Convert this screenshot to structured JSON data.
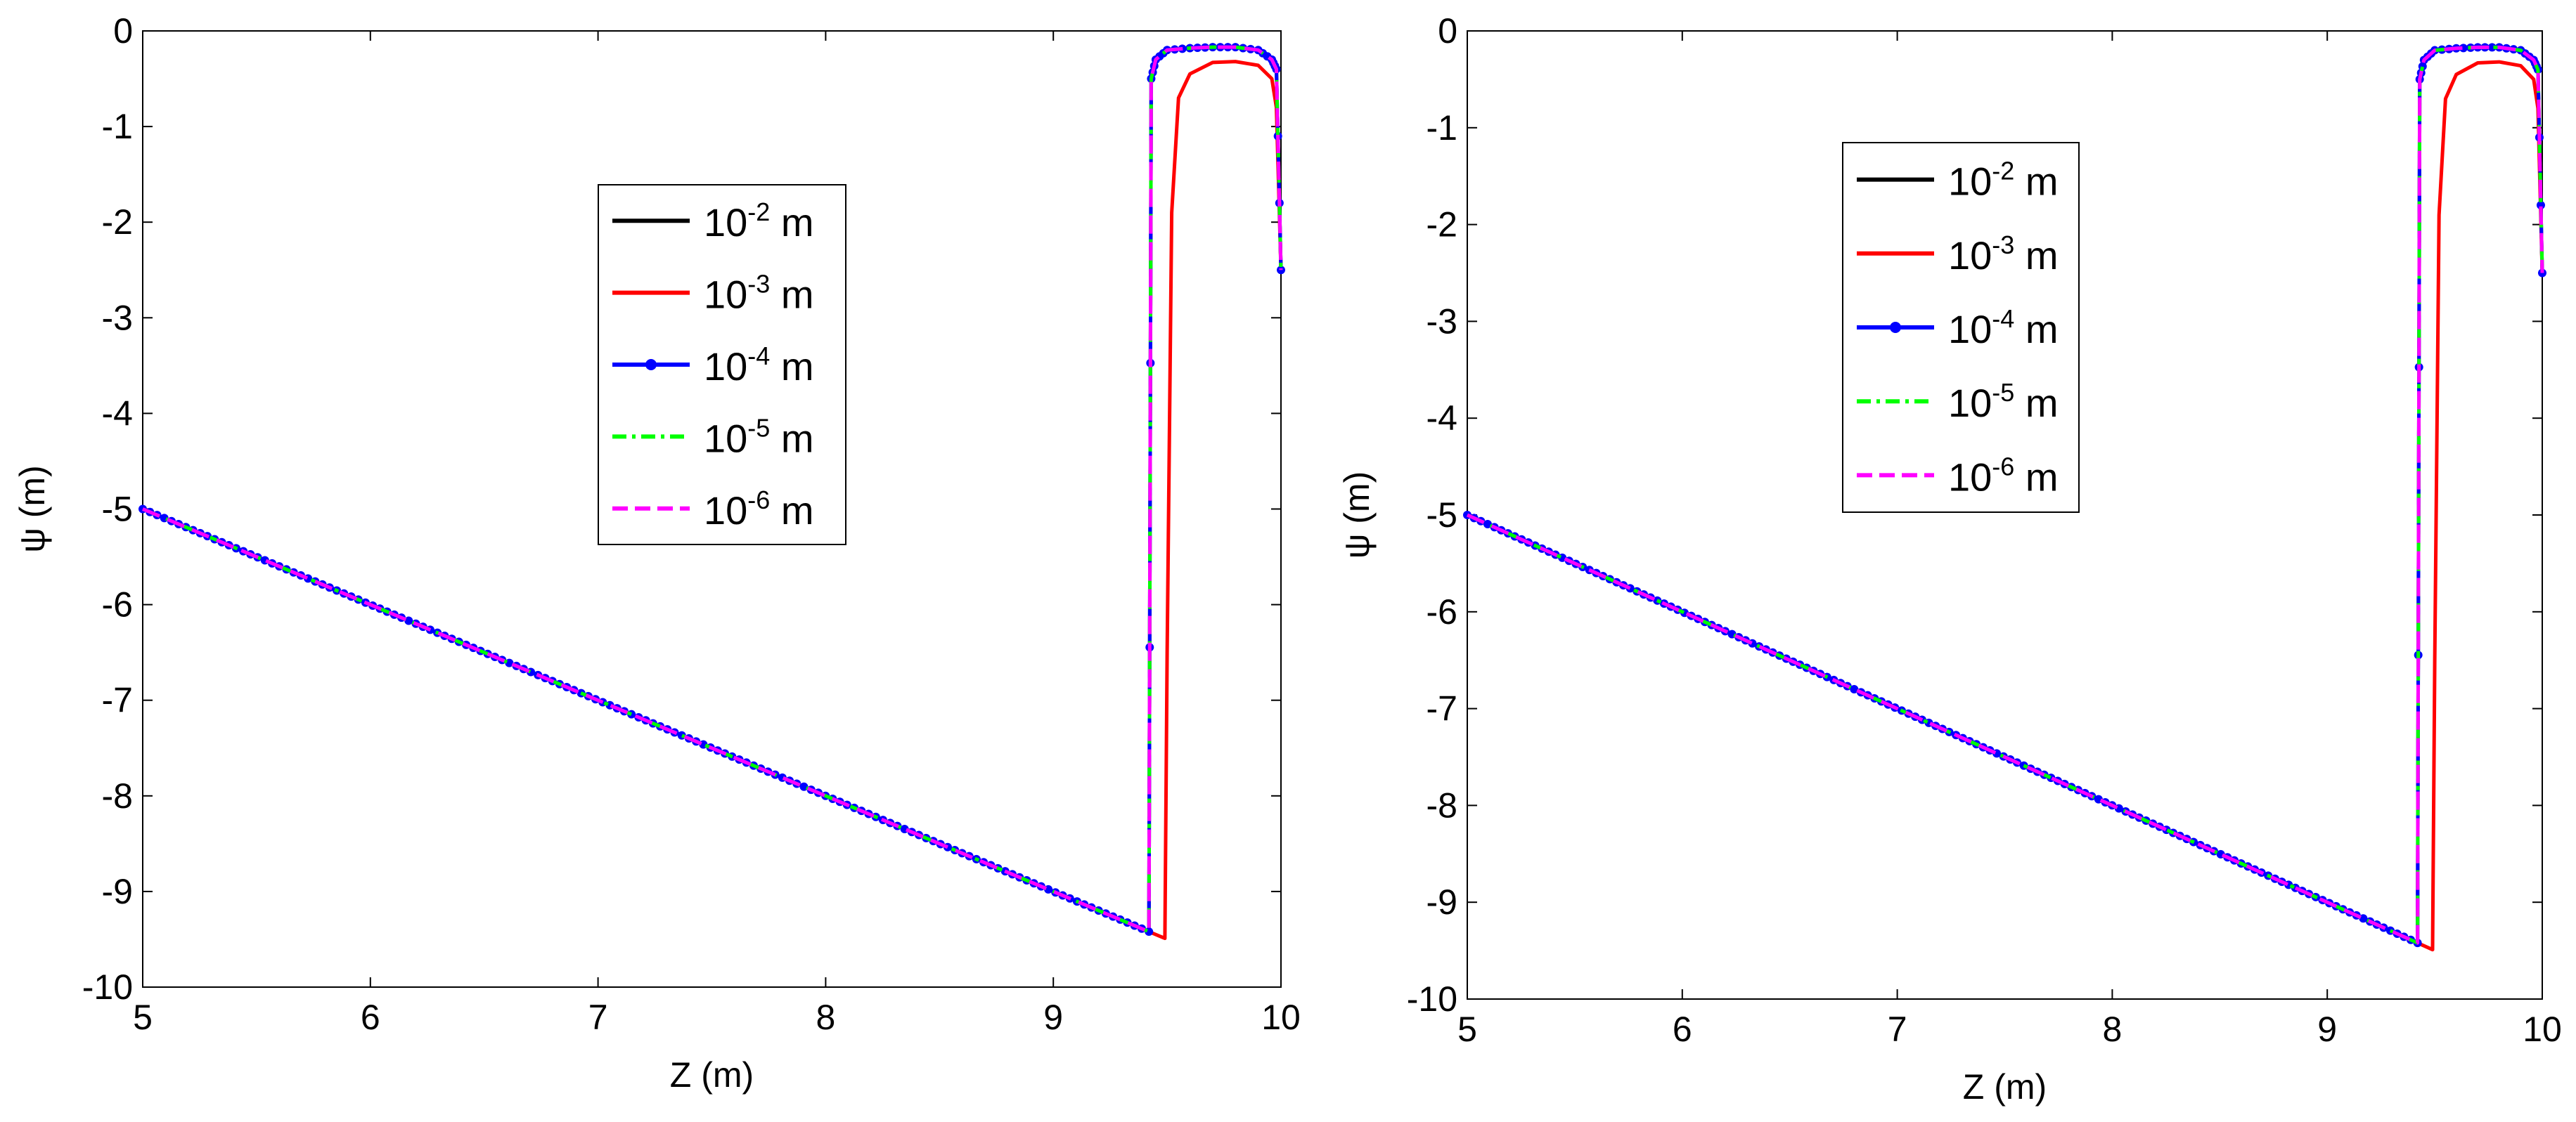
{
  "chart_data": [
    {
      "type": "line",
      "xlabel": "Z (m)",
      "ylabel": "ψ (m)",
      "xlim": [
        5,
        10
      ],
      "ylim": [
        -10,
        0
      ],
      "xticks": [
        "5",
        "6",
        "7",
        "8",
        "9",
        "10"
      ],
      "yticks": [
        "0",
        "-1",
        "-2",
        "-3",
        "-4",
        "-5",
        "-6",
        "-7",
        "-8",
        "-9",
        "-10"
      ],
      "grid": false,
      "legend_placement": "upper-center",
      "series": [
        {
          "name_base": "10",
          "name_exp": "-2",
          "name_unit": " m",
          "color": "#000000",
          "style": "solid",
          "marker": "none",
          "x": [
            5.0,
            9.42,
            9.43,
            9.45,
            9.5,
            9.6,
            9.7,
            9.8,
            9.9,
            9.96,
            9.98,
            10.0
          ],
          "y": [
            -5.0,
            -9.42,
            -0.5,
            -0.3,
            -0.2,
            -0.18,
            -0.17,
            -0.17,
            -0.2,
            -0.3,
            -0.4,
            -2.5
          ]
        },
        {
          "name_base": "10",
          "name_exp": "-3",
          "name_unit": " m",
          "color": "#ff0000",
          "style": "solid",
          "marker": "none",
          "x": [
            5.0,
            9.49,
            9.5,
            9.52,
            9.55,
            9.6,
            9.7,
            9.8,
            9.9,
            9.96,
            9.98,
            10.0
          ],
          "y": [
            -5.0,
            -9.49,
            -6.5,
            -1.9,
            -0.7,
            -0.45,
            -0.33,
            -0.32,
            -0.36,
            -0.5,
            -0.8,
            -2.5
          ]
        },
        {
          "name_base": "10",
          "name_exp": "-4",
          "name_unit": " m",
          "color": "#0000ff",
          "style": "solid",
          "marker": "dot",
          "x": [
            5.0,
            9.42,
            9.43,
            9.45,
            9.5,
            9.6,
            9.7,
            9.8,
            9.9,
            9.96,
            9.98,
            10.0
          ],
          "y": [
            -5.0,
            -9.42,
            -0.5,
            -0.3,
            -0.2,
            -0.18,
            -0.17,
            -0.17,
            -0.2,
            -0.3,
            -0.4,
            -2.5
          ]
        },
        {
          "name_base": "10",
          "name_exp": "-5",
          "name_unit": " m",
          "color": "#00ff00",
          "style": "dashdot",
          "marker": "none",
          "x": [
            5.0,
            9.42,
            9.43,
            9.45,
            9.5,
            9.6,
            9.7,
            9.8,
            9.9,
            9.96,
            9.98,
            10.0
          ],
          "y": [
            -5.0,
            -9.42,
            -0.5,
            -0.3,
            -0.2,
            -0.18,
            -0.17,
            -0.17,
            -0.2,
            -0.3,
            -0.4,
            -2.5
          ]
        },
        {
          "name_base": "10",
          "name_exp": "-6",
          "name_unit": " m",
          "color": "#ff00ff",
          "style": "dashed",
          "marker": "none",
          "x": [
            5.0,
            9.42,
            9.43,
            9.45,
            9.5,
            9.6,
            9.7,
            9.8,
            9.9,
            9.96,
            9.98,
            10.0
          ],
          "y": [
            -5.0,
            -9.42,
            -0.5,
            -0.3,
            -0.2,
            -0.18,
            -0.17,
            -0.17,
            -0.2,
            -0.3,
            -0.4,
            -2.5
          ]
        }
      ]
    },
    {
      "type": "line",
      "xlabel": "Z (m)",
      "ylabel": "ψ (m)",
      "xlim": [
        5,
        10
      ],
      "ylim": [
        -10,
        0
      ],
      "xticks": [
        "5",
        "6",
        "7",
        "8",
        "9",
        "10"
      ],
      "yticks": [
        "0",
        "-1",
        "-2",
        "-3",
        "-4",
        "-5",
        "-6",
        "-7",
        "-8",
        "-9",
        "-10"
      ],
      "grid": false,
      "legend_placement": "upper-center",
      "series": [
        {
          "name_base": "10",
          "name_exp": "-2",
          "name_unit": " m",
          "color": "#000000",
          "style": "solid",
          "marker": "none",
          "x": [
            5.0,
            9.42,
            9.43,
            9.45,
            9.5,
            9.6,
            9.7,
            9.8,
            9.9,
            9.96,
            9.98,
            10.0
          ],
          "y": [
            -5.0,
            -9.42,
            -0.5,
            -0.3,
            -0.2,
            -0.18,
            -0.17,
            -0.17,
            -0.2,
            -0.3,
            -0.4,
            -2.5
          ]
        },
        {
          "name_base": "10",
          "name_exp": "-3",
          "name_unit": " m",
          "color": "#ff0000",
          "style": "solid",
          "marker": "none",
          "x": [
            5.0,
            9.49,
            9.5,
            9.52,
            9.55,
            9.6,
            9.7,
            9.8,
            9.9,
            9.96,
            9.98,
            10.0
          ],
          "y": [
            -5.0,
            -9.49,
            -6.5,
            -1.9,
            -0.7,
            -0.45,
            -0.33,
            -0.32,
            -0.36,
            -0.5,
            -0.8,
            -2.5
          ]
        },
        {
          "name_base": "10",
          "name_exp": "-4",
          "name_unit": " m",
          "color": "#0000ff",
          "style": "solid",
          "marker": "dot",
          "x": [
            5.0,
            9.42,
            9.43,
            9.45,
            9.5,
            9.6,
            9.7,
            9.8,
            9.9,
            9.96,
            9.98,
            10.0
          ],
          "y": [
            -5.0,
            -9.42,
            -0.5,
            -0.3,
            -0.2,
            -0.18,
            -0.17,
            -0.17,
            -0.2,
            -0.3,
            -0.4,
            -2.5
          ]
        },
        {
          "name_base": "10",
          "name_exp": "-5",
          "name_unit": " m",
          "color": "#00ff00",
          "style": "dashdot",
          "marker": "none",
          "x": [
            5.0,
            9.42,
            9.43,
            9.45,
            9.5,
            9.6,
            9.7,
            9.8,
            9.9,
            9.96,
            9.98,
            10.0
          ],
          "y": [
            -5.0,
            -9.42,
            -0.5,
            -0.3,
            -0.2,
            -0.18,
            -0.17,
            -0.17,
            -0.2,
            -0.3,
            -0.4,
            -2.5
          ]
        },
        {
          "name_base": "10",
          "name_exp": "-6",
          "name_unit": " m",
          "color": "#ff00ff",
          "style": "dashed",
          "marker": "none",
          "x": [
            5.0,
            9.42,
            9.43,
            9.45,
            9.5,
            9.6,
            9.7,
            9.8,
            9.9,
            9.96,
            9.98,
            10.0
          ],
          "y": [
            -5.0,
            -9.42,
            -0.5,
            -0.3,
            -0.2,
            -0.18,
            -0.17,
            -0.17,
            -0.2,
            -0.3,
            -0.4,
            -2.5
          ]
        }
      ]
    }
  ]
}
